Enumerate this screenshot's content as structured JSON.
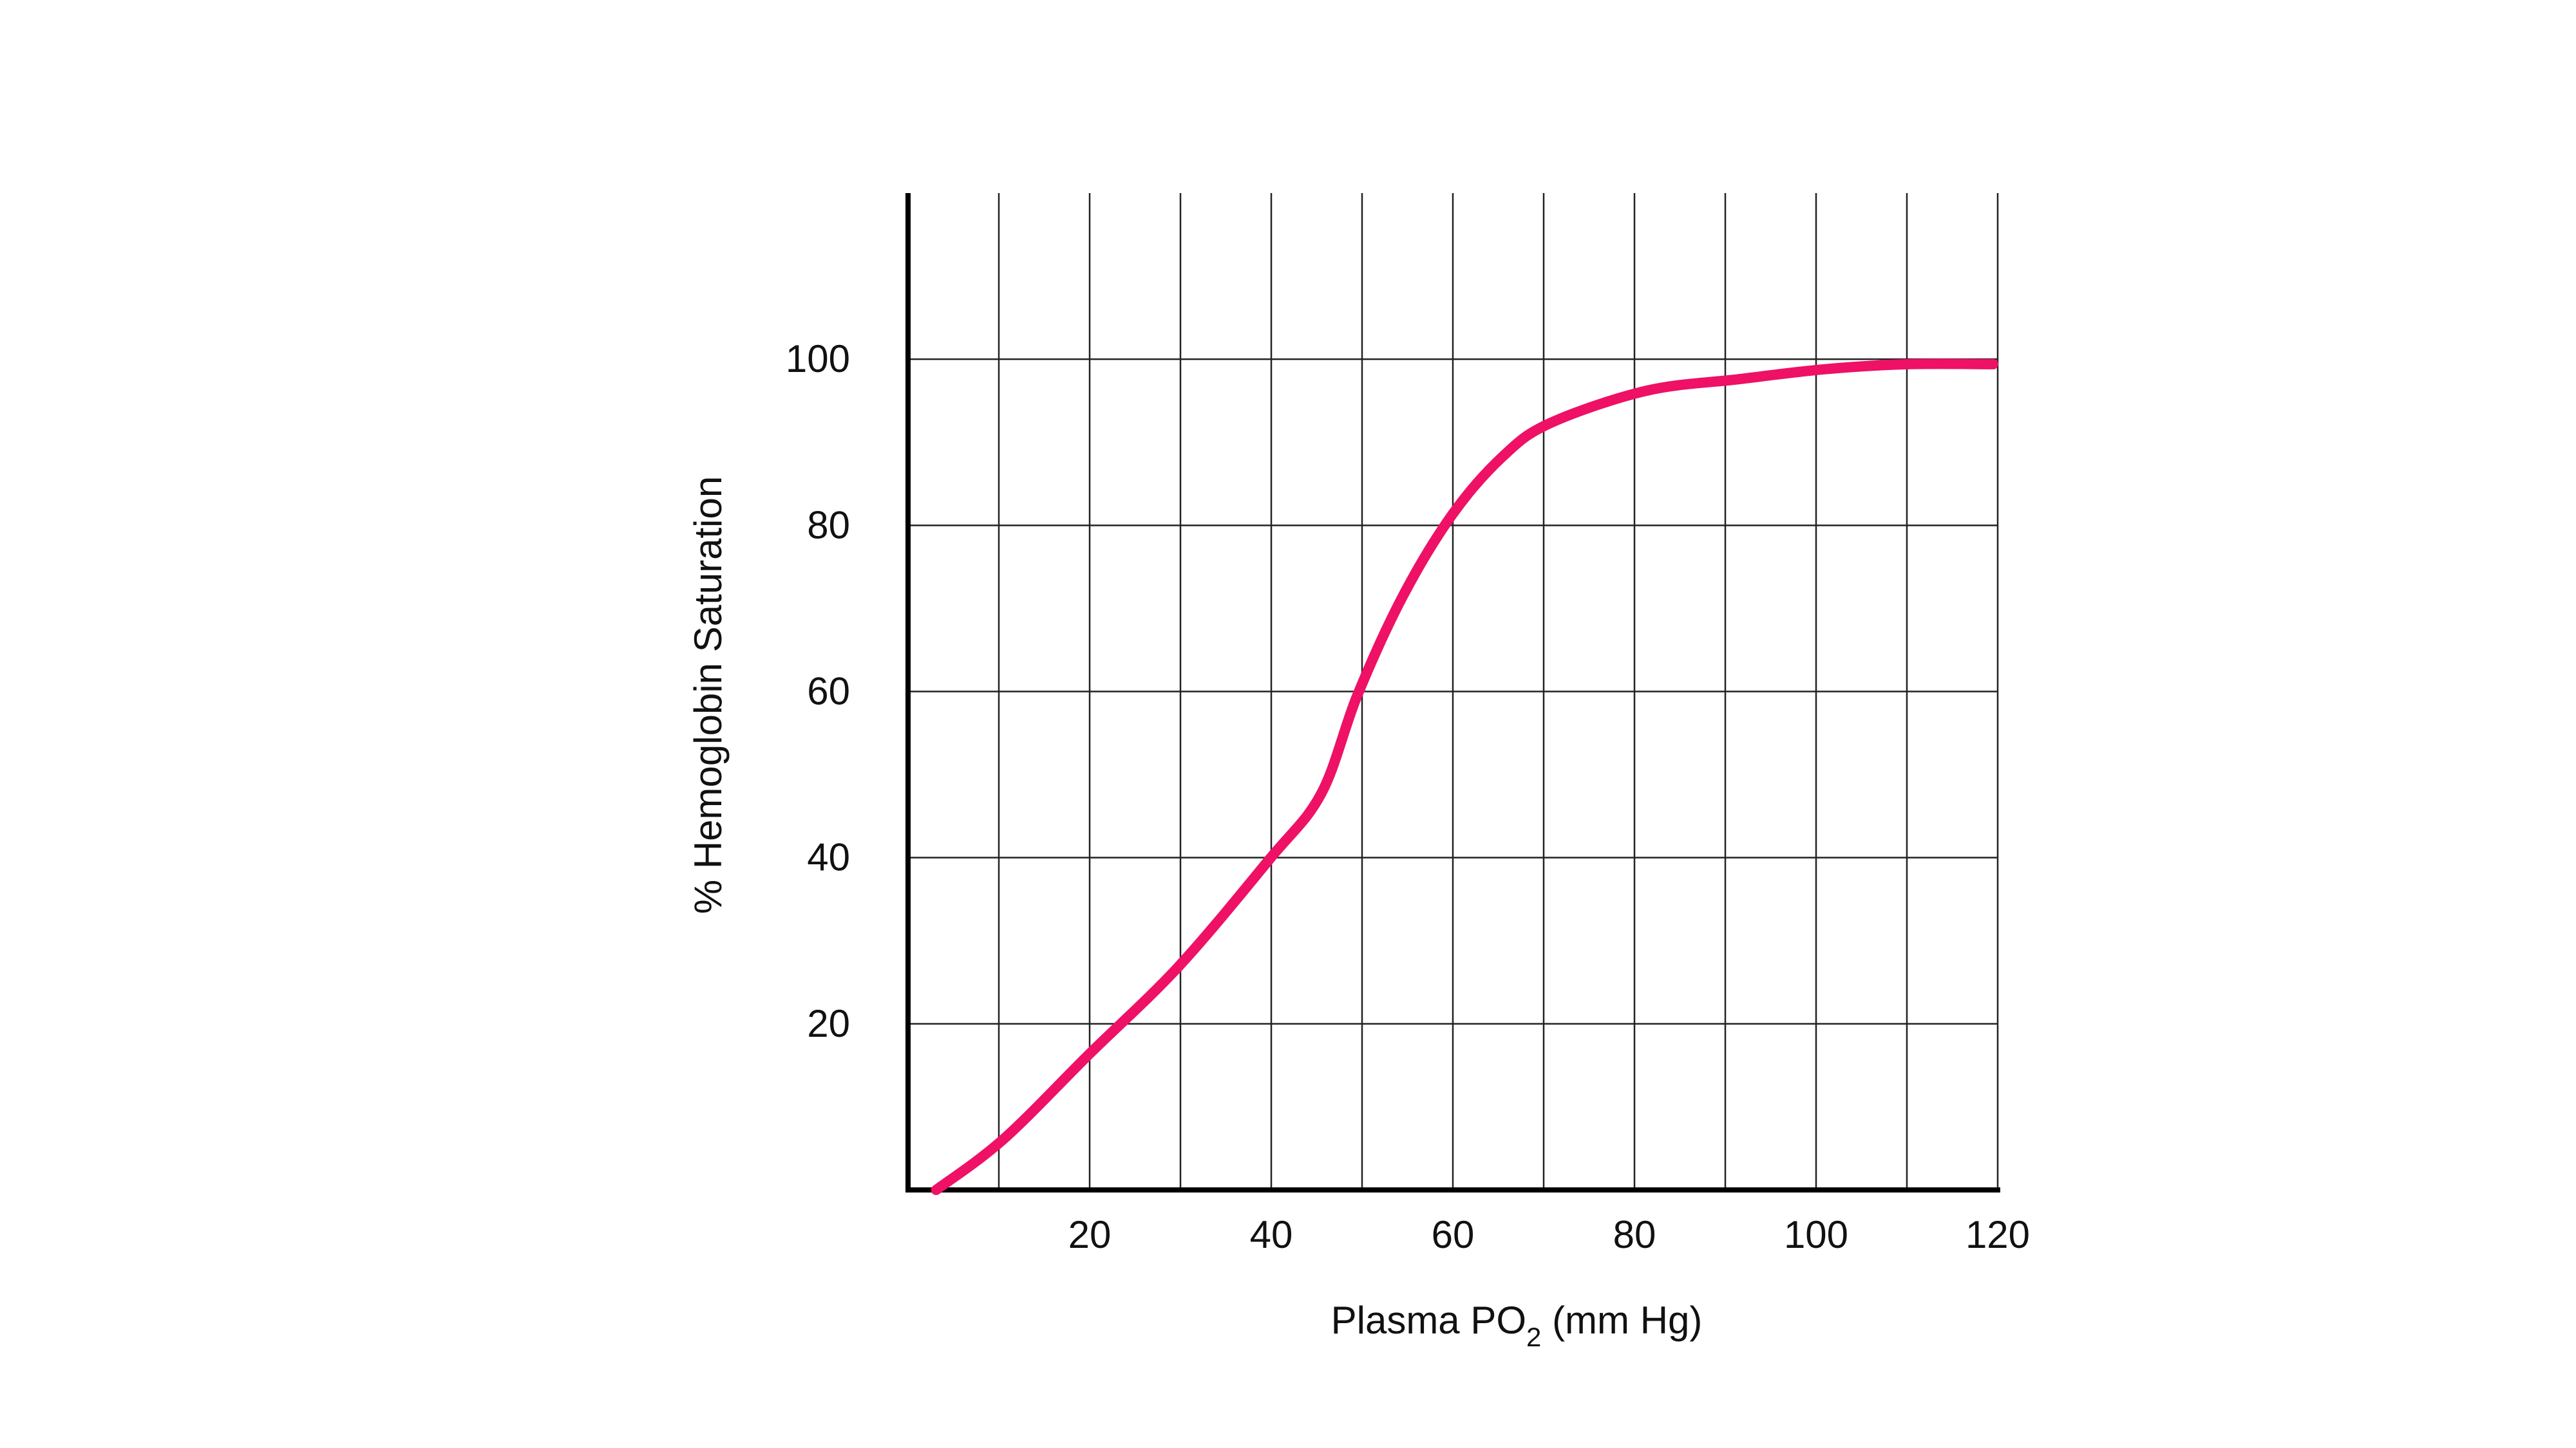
{
  "chart_data": {
    "type": "line",
    "x_label": [
      "Plasma PO",
      "2",
      " (mm Hg)"
    ],
    "y_label": "% Hemoglobin Saturation",
    "xlim": [
      0,
      120
    ],
    "xticks": [
      20,
      40,
      60,
      80,
      100,
      120
    ],
    "x_minor_grid": [
      10,
      30,
      50,
      70,
      90,
      110
    ],
    "ylim": [
      0,
      120
    ],
    "yticks": [
      20,
      40,
      60,
      80,
      100
    ],
    "grid": true,
    "x": [
      3.1,
      10.5,
      20,
      29.8,
      39.8,
      45.5,
      49.5,
      54.5,
      60,
      65.5,
      70.7,
      81.3,
      91.5,
      101,
      110,
      119.5
    ],
    "series": [
      {
        "color": "#ee1166",
        "values": [
          0,
          6.1,
          16.4,
          26.9,
          39.8,
          47.7,
          59.6,
          71.5,
          81.4,
          88.3,
          92.3,
          96.2,
          97.6,
          98.8,
          99.4,
          99.4
        ]
      }
    ]
  }
}
